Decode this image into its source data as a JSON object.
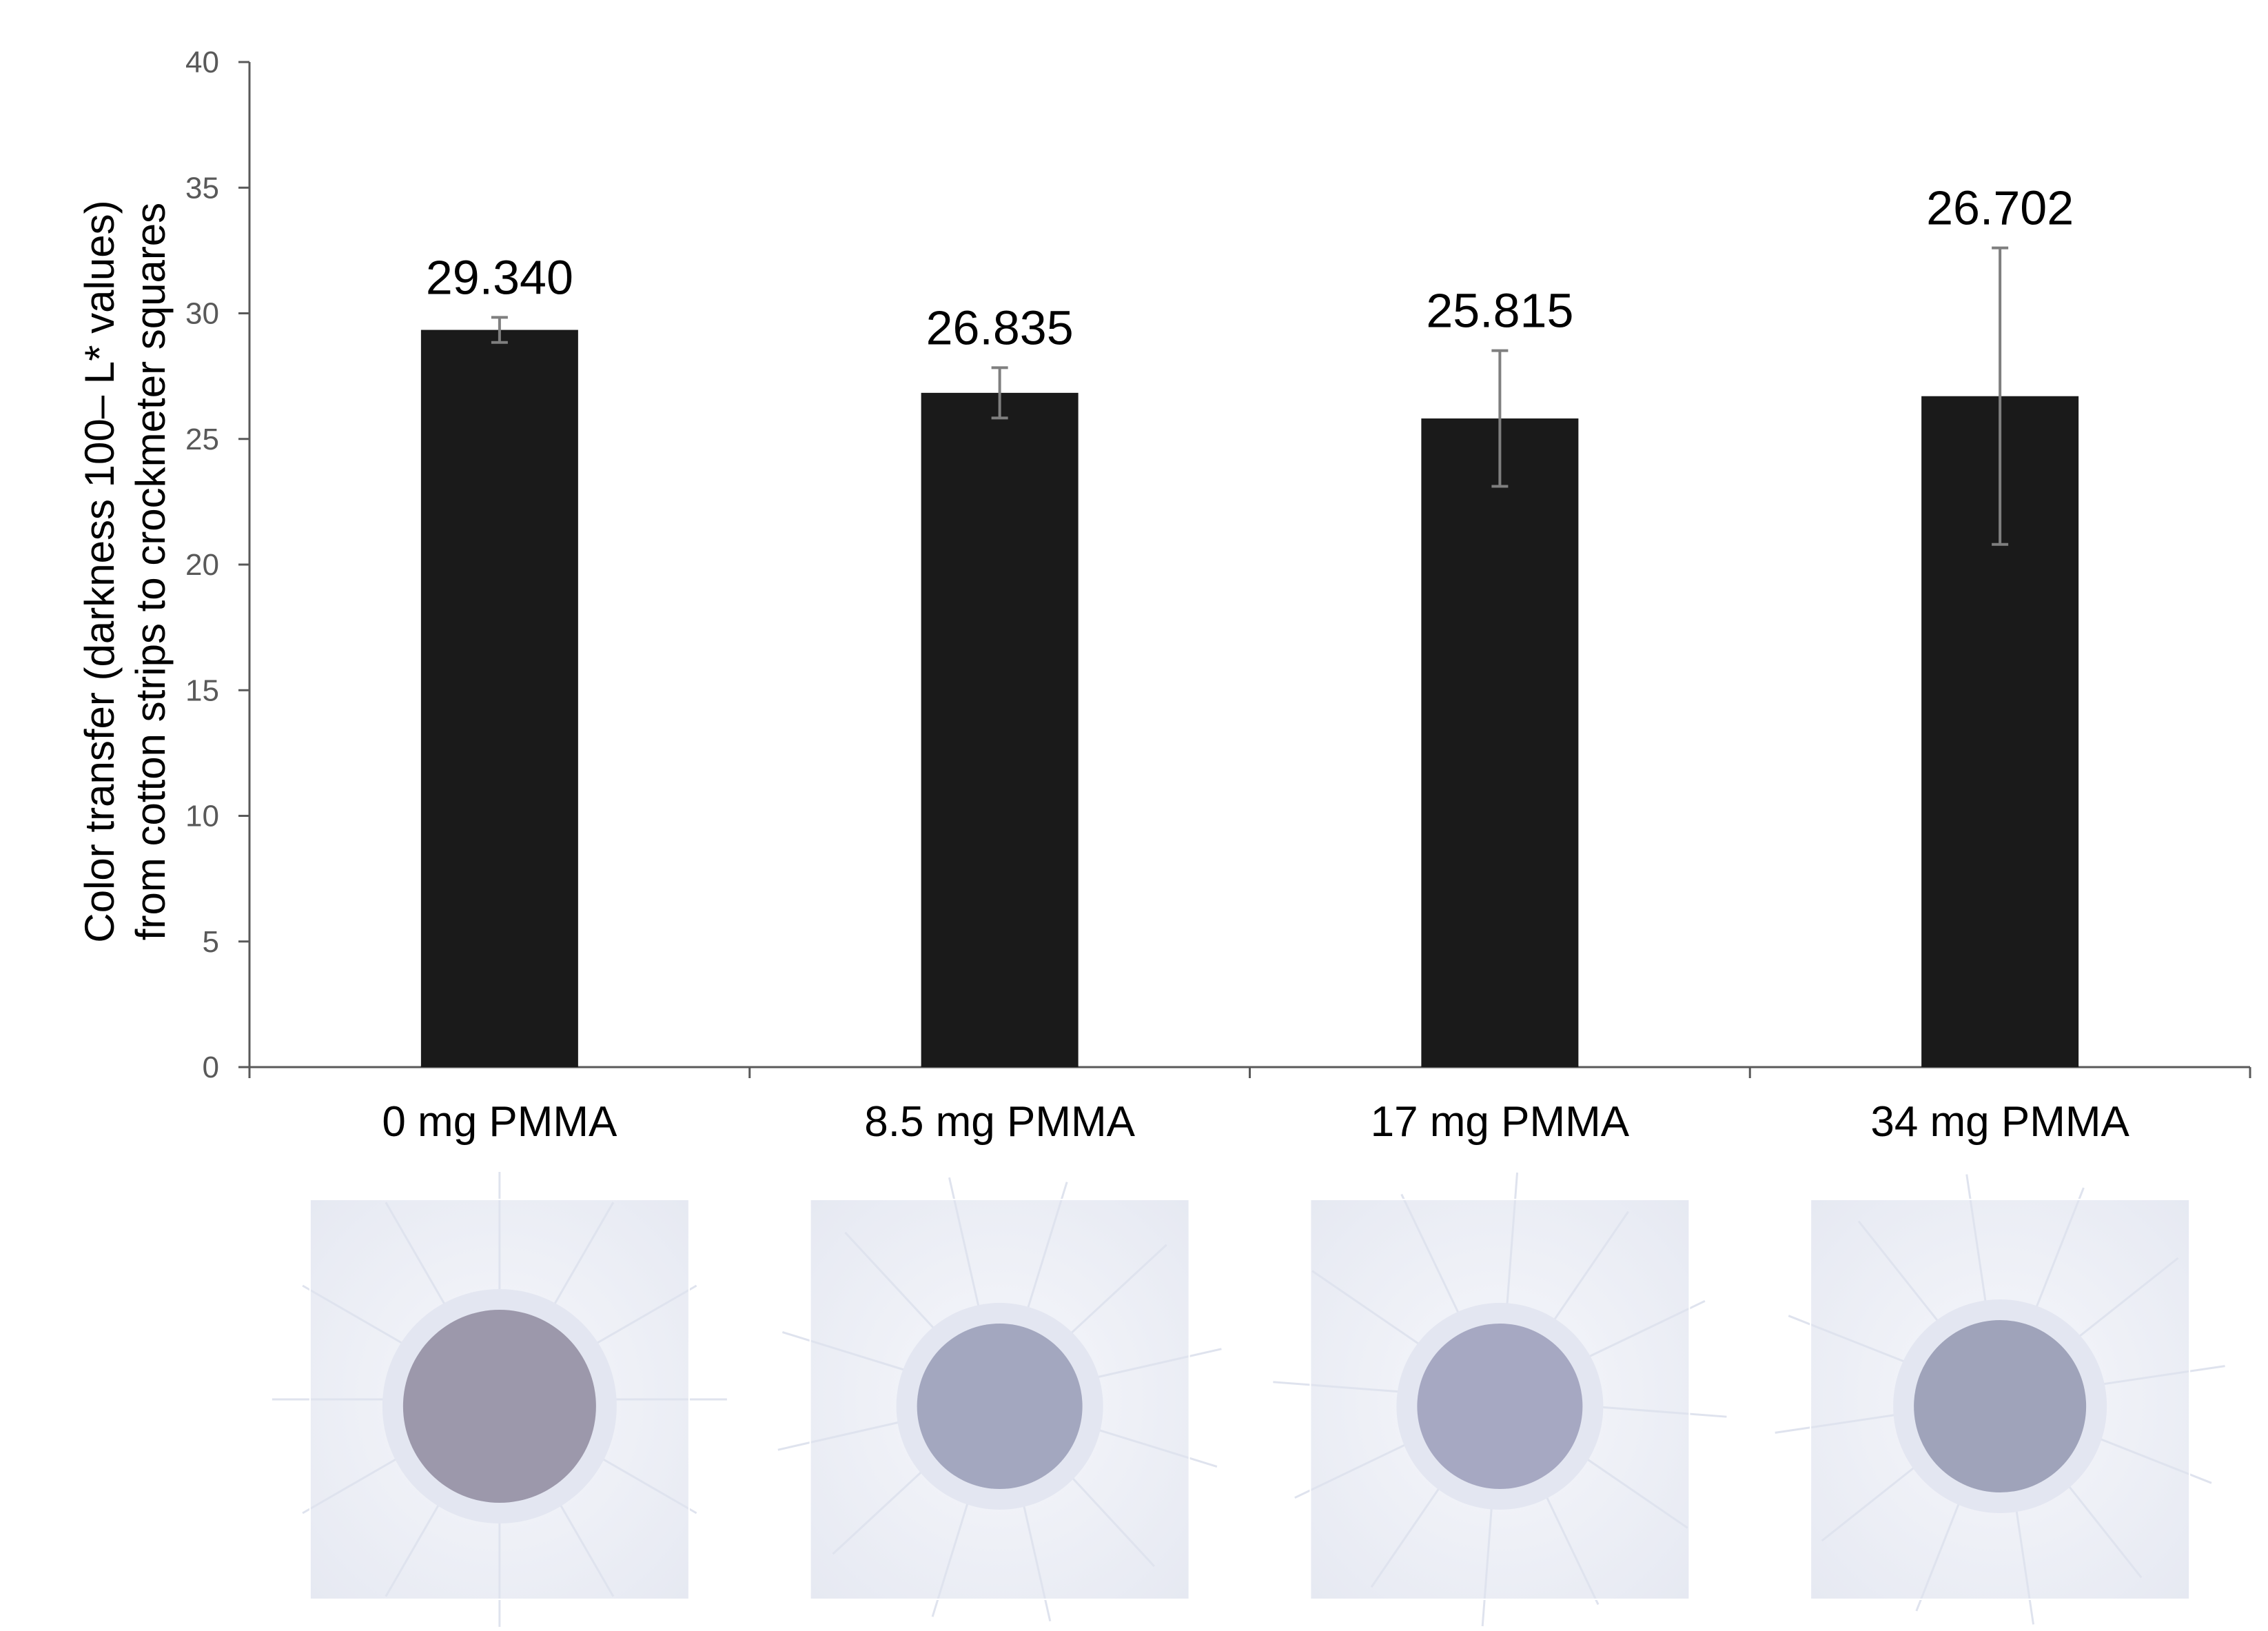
{
  "chart_data": {
    "type": "bar",
    "categories": [
      "0 mg PMMA",
      "8.5 mg PMMA",
      "17 mg PMMA",
      "34 mg PMMA"
    ],
    "values": [
      29.34,
      26.835,
      25.815,
      26.702
    ],
    "value_labels": [
      "29.340",
      "26.835",
      "25.815",
      "26.702"
    ],
    "errors": [
      0.5,
      1.0,
      2.7,
      5.9
    ],
    "title": "",
    "xlabel": "",
    "ylabel_lines": [
      "Color transfer (darkness 100– L* values)",
      "from cotton strips to crockmeter squares"
    ],
    "ylim": [
      0,
      40
    ],
    "yticks": [
      0,
      5,
      10,
      15,
      20,
      25,
      30,
      35,
      40
    ],
    "grid": false,
    "legend": "none",
    "colors": {
      "bar": "#1a1a1a",
      "error_bar": "#7f7f7f",
      "axis": "#595959",
      "swatch_background": "#eef0f6",
      "swatch_spot": [
        "#9c98ab",
        "#a3a7bf",
        "#a6a8c2",
        "#9fa3ba"
      ]
    }
  },
  "swatch_images": [
    "crockmeter-square-0mg",
    "crockmeter-square-8.5mg",
    "crockmeter-square-17mg",
    "crockmeter-square-34mg"
  ]
}
